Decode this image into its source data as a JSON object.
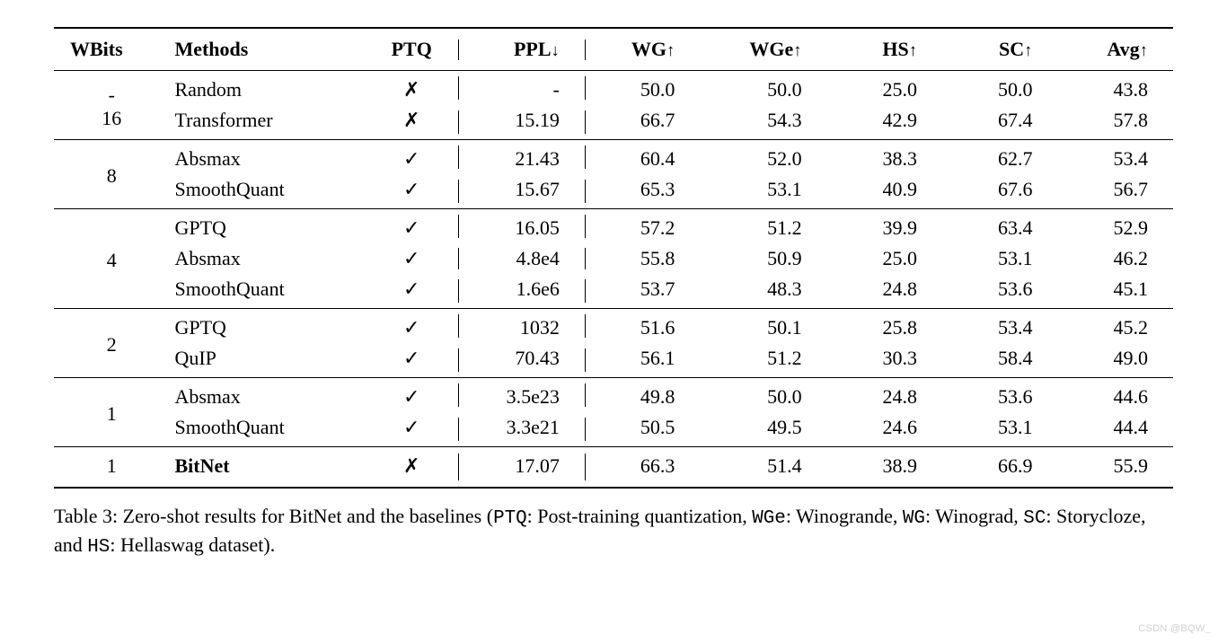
{
  "symbols": {
    "check": "✓",
    "cross": "✗",
    "down": "↓",
    "up": "↑"
  },
  "colors": {
    "text": "#000000",
    "background": "#ffffff",
    "rule": "#000000",
    "watermark": "#cfcfcf"
  },
  "typography": {
    "body_font": "Times New Roman",
    "body_size_pt": 16,
    "mono_font": "Courier New"
  },
  "headers": {
    "wbits": "WBits",
    "methods": "Methods",
    "ptq": "PTQ",
    "ppl": "PPL",
    "wg": "WG",
    "wge": "WGe",
    "hs": "HS",
    "sc": "SC",
    "avg": "Avg"
  },
  "groups": [
    {
      "wbits": "-\n16",
      "wbits_lines": [
        "-",
        "16"
      ],
      "rows": [
        {
          "method": "Random",
          "bold": false,
          "ptq": "cross",
          "ppl": "-",
          "wg": "50.0",
          "wge": "50.0",
          "hs": "25.0",
          "sc": "50.0",
          "avg": "43.8"
        },
        {
          "method": "Transformer",
          "bold": false,
          "ptq": "cross",
          "ppl": "15.19",
          "wg": "66.7",
          "wge": "54.3",
          "hs": "42.9",
          "sc": "67.4",
          "avg": "57.8"
        }
      ]
    },
    {
      "wbits": "8",
      "rows": [
        {
          "method": "Absmax",
          "bold": false,
          "ptq": "check",
          "ppl": "21.43",
          "wg": "60.4",
          "wge": "52.0",
          "hs": "38.3",
          "sc": "62.7",
          "avg": "53.4"
        },
        {
          "method": "SmoothQuant",
          "bold": false,
          "ptq": "check",
          "ppl": "15.67",
          "wg": "65.3",
          "wge": "53.1",
          "hs": "40.9",
          "sc": "67.6",
          "avg": "56.7"
        }
      ]
    },
    {
      "wbits": "4",
      "rows": [
        {
          "method": "GPTQ",
          "bold": false,
          "ptq": "check",
          "ppl": "16.05",
          "wg": "57.2",
          "wge": "51.2",
          "hs": "39.9",
          "sc": "63.4",
          "avg": "52.9"
        },
        {
          "method": "Absmax",
          "bold": false,
          "ptq": "check",
          "ppl": "4.8e4",
          "wg": "55.8",
          "wge": "50.9",
          "hs": "25.0",
          "sc": "53.1",
          "avg": "46.2"
        },
        {
          "method": "SmoothQuant",
          "bold": false,
          "ptq": "check",
          "ppl": "1.6e6",
          "wg": "53.7",
          "wge": "48.3",
          "hs": "24.8",
          "sc": "53.6",
          "avg": "45.1"
        }
      ]
    },
    {
      "wbits": "2",
      "rows": [
        {
          "method": "GPTQ",
          "bold": false,
          "ptq": "check",
          "ppl": "1032",
          "wg": "51.6",
          "wge": "50.1",
          "hs": "25.8",
          "sc": "53.4",
          "avg": "45.2"
        },
        {
          "method": "QuIP",
          "bold": false,
          "ptq": "check",
          "ppl": "70.43",
          "wg": "56.1",
          "wge": "51.2",
          "hs": "30.3",
          "sc": "58.4",
          "avg": "49.0"
        }
      ]
    },
    {
      "wbits": "1",
      "rows": [
        {
          "method": "Absmax",
          "bold": false,
          "ptq": "check",
          "ppl": "3.5e23",
          "wg": "49.8",
          "wge": "50.0",
          "hs": "24.8",
          "sc": "53.6",
          "avg": "44.6"
        },
        {
          "method": "SmoothQuant",
          "bold": false,
          "ptq": "check",
          "ppl": "3.3e21",
          "wg": "50.5",
          "wge": "49.5",
          "hs": "24.6",
          "sc": "53.1",
          "avg": "44.4"
        }
      ]
    },
    {
      "wbits": "1",
      "rows": [
        {
          "method": "BitNet",
          "bold": true,
          "ptq": "cross",
          "ppl": "17.07",
          "wg": "66.3",
          "wge": "51.4",
          "hs": "38.9",
          "sc": "66.9",
          "avg": "55.9"
        }
      ]
    }
  ],
  "caption": {
    "lead": "Table 3: Zero-shot results for BitNet and the baselines (",
    "ptq_code": "PTQ",
    "ptq_text": ": Post-training quantization, ",
    "wge_code": "WGe",
    "wge_text": ": Winogrande, ",
    "wg_code": "WG",
    "wg_text": ": Winograd, ",
    "sc_code": "SC",
    "sc_text": ": Storycloze, and ",
    "hs_code": "HS",
    "hs_text": ": Hellaswag dataset)."
  },
  "watermark": "CSDN @BQW_"
}
